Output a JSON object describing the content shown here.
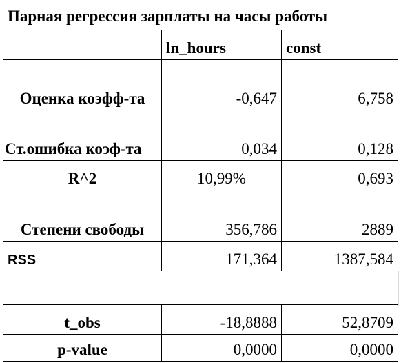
{
  "table": {
    "title": "Парная регрессия зарплаты на часы работы",
    "header": {
      "col1": "",
      "col2": "ln_hours",
      "col3": "const"
    },
    "rows": [
      {
        "label": "Оценка коэфф-та",
        "v1": "-0,647",
        "v2": "6,758"
      },
      {
        "label": "Ст.ошибка коэф-та",
        "v1": "0,034",
        "v2": "0,128"
      },
      {
        "label": "R^2",
        "v1": "10,99%",
        "v2": "0,693"
      },
      {
        "label": "Степени свободы",
        "v1": "356,786",
        "v2": "2889"
      },
      {
        "label": "RSS",
        "v1": "171,364",
        "v2": "1387,584"
      }
    ],
    "rows2": [
      {
        "label": "t_obs",
        "v1": "-18,8888",
        "v2": "52,8709"
      },
      {
        "label": "p-value",
        "v1": "0,0000",
        "v2": "0,0000"
      }
    ]
  }
}
